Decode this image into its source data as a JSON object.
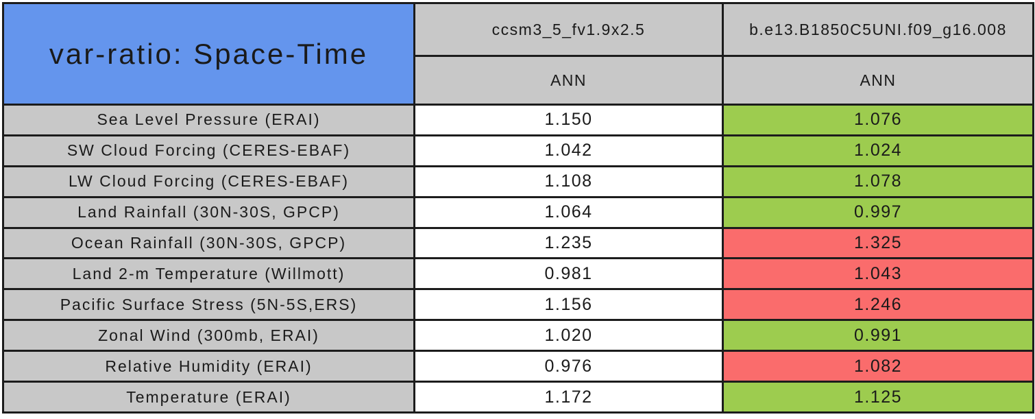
{
  "colors": {
    "title_bg": "#6495ED",
    "header_bg": "#C8C8C8",
    "label_bg": "#C8C8C8",
    "neutral_bg": "#FFFFFF",
    "better_bg": "#9DCC4F",
    "worse_bg": "#FA6C6C",
    "border": "#1C1C1C"
  },
  "chart_data": {
    "type": "table",
    "title": "var-ratio: Space-Time",
    "column_headers": [
      {
        "model": "ccsm3_5_fv1.9x2.5",
        "season": "ANN"
      },
      {
        "model": "b.e13.B1850C5UNI.f09_g16.008",
        "season": "ANN"
      }
    ],
    "rows": [
      {
        "label": "Sea Level Pressure (ERAI)",
        "values": [
          "1.150",
          "1.076"
        ],
        "value2_status": "better"
      },
      {
        "label": "SW Cloud Forcing (CERES-EBAF)",
        "values": [
          "1.042",
          "1.024"
        ],
        "value2_status": "better"
      },
      {
        "label": "LW Cloud Forcing (CERES-EBAF)",
        "values": [
          "1.108",
          "1.078"
        ],
        "value2_status": "better"
      },
      {
        "label": "Land Rainfall (30N-30S, GPCP)",
        "values": [
          "1.064",
          "0.997"
        ],
        "value2_status": "better"
      },
      {
        "label": "Ocean Rainfall (30N-30S, GPCP)",
        "values": [
          "1.235",
          "1.325"
        ],
        "value2_status": "worse"
      },
      {
        "label": "Land 2-m Temperature (Willmott)",
        "values": [
          "0.981",
          "1.043"
        ],
        "value2_status": "worse"
      },
      {
        "label": "Pacific Surface Stress (5N-5S,ERS)",
        "values": [
          "1.156",
          "1.246"
        ],
        "value2_status": "worse"
      },
      {
        "label": "Zonal Wind (300mb, ERAI)",
        "values": [
          "1.020",
          "0.991"
        ],
        "value2_status": "better"
      },
      {
        "label": "Relative Humidity (ERAI)",
        "values": [
          "0.976",
          "1.082"
        ],
        "value2_status": "worse"
      },
      {
        "label": "Temperature (ERAI)",
        "values": [
          "1.172",
          "1.125"
        ],
        "value2_status": "better"
      }
    ]
  }
}
